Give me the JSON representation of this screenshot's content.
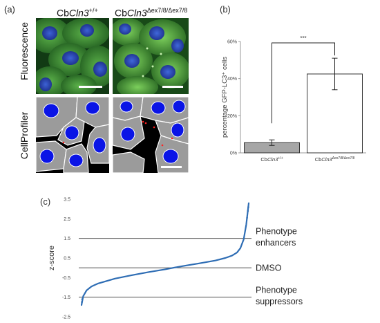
{
  "panel_a": {
    "letter": "(a)",
    "col1_title": {
      "prefix": "Cb",
      "gene": "Cln3",
      "sup": "+/+"
    },
    "col2_title": {
      "prefix": "Cb",
      "gene": "Cln3",
      "sup": "Δex7/8/Δex7/8"
    },
    "row1_title": "Fluorescence",
    "row2_title": "CellProfiler"
  },
  "chart_data": [
    {
      "type": "bar",
      "panel": "(b)",
      "categories": [
        {
          "prefix": "Cb",
          "gene": "Cln3",
          "sup": "+/+"
        },
        {
          "prefix": "Cb",
          "gene": "Cln3",
          "sup": "Δex7/8/Δex7/8"
        }
      ],
      "values": [
        5.5,
        42.5
      ],
      "error": [
        1.5,
        8.5
      ],
      "bar_colors": [
        "#a6a6a6",
        "#ffffff"
      ],
      "ylabel": "percentage GFP-LC3⁺ cells",
      "ylim": [
        0,
        60
      ],
      "yticks": [
        "0%",
        "20%",
        "40%",
        "60%"
      ],
      "ytick_values": [
        0,
        20,
        40,
        60
      ],
      "significance": "***"
    },
    {
      "type": "line",
      "panel": "(c)",
      "ylabel": "z-score",
      "ylim": [
        -2.5,
        3.5
      ],
      "yticks": [
        "-2.5",
        "-1.5",
        "-0.5",
        "0.5",
        "1.5",
        "2.5",
        "3.5"
      ],
      "ytick_values": [
        -2.5,
        -1.5,
        -0.5,
        0.5,
        1.5,
        2.5,
        3.5
      ],
      "reference_lines": [
        {
          "y": 1.5,
          "label_lines": [
            "Phenotype",
            "enhancers"
          ]
        },
        {
          "y": 0.0,
          "label_lines": [
            "DMSO"
          ]
        },
        {
          "y": -1.5,
          "label_lines": [
            "Phenotype",
            "suppressors"
          ]
        }
      ],
      "curve_x": [
        0,
        0.01,
        0.03,
        0.06,
        0.1,
        0.2,
        0.3,
        0.4,
        0.5,
        0.6,
        0.7,
        0.8,
        0.86,
        0.9,
        0.93,
        0.95,
        0.97,
        0.985,
        1.0
      ],
      "curve_y": [
        -1.9,
        -1.45,
        -1.15,
        -0.95,
        -0.8,
        -0.55,
        -0.38,
        -0.22,
        -0.08,
        0.08,
        0.22,
        0.37,
        0.5,
        0.62,
        0.78,
        1.0,
        1.45,
        2.2,
        3.3
      ],
      "series_color": "#2e6db4"
    }
  ]
}
